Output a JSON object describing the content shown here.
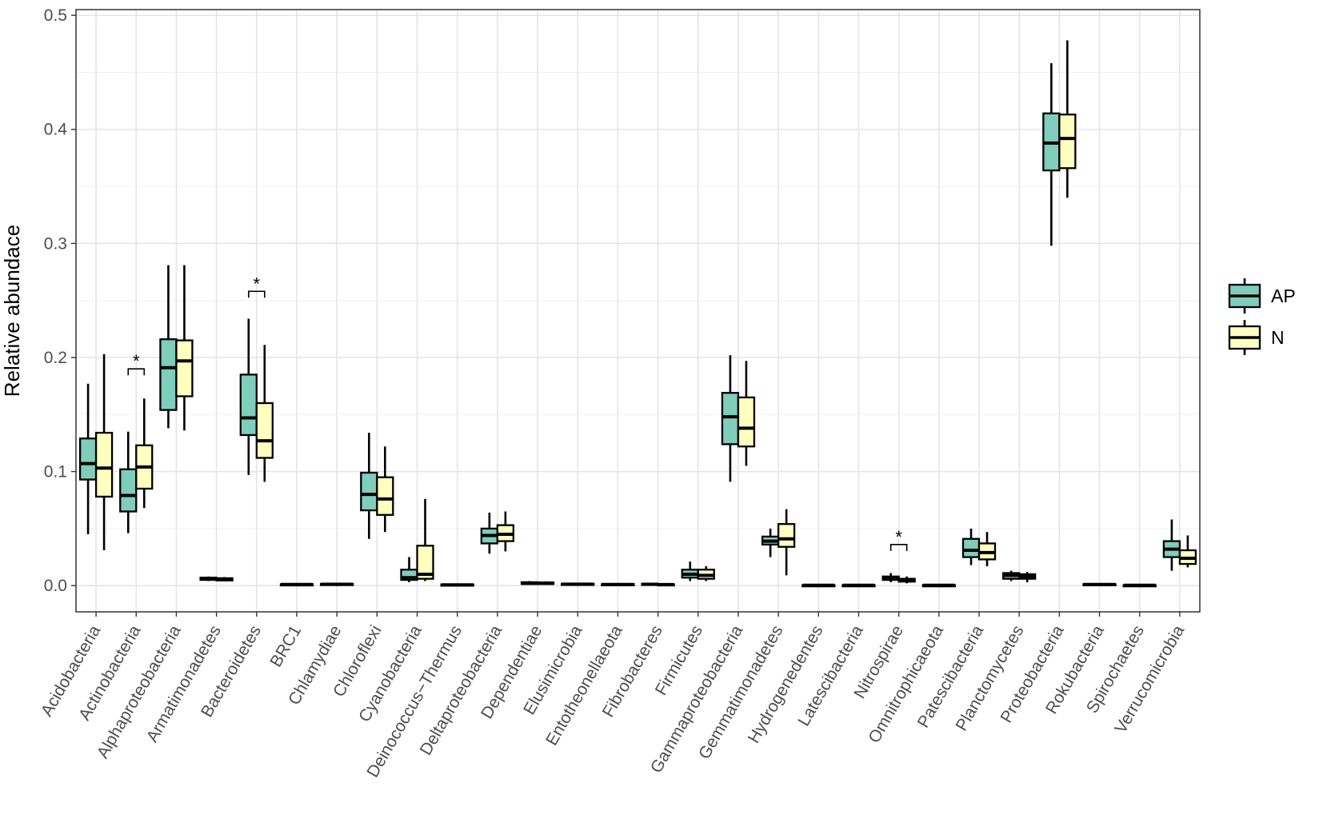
{
  "chart_data": {
    "type": "box",
    "title": "",
    "xlabel": "",
    "ylabel": "Relative abundace",
    "ylim": [
      -0.023,
      0.505
    ],
    "yticks": [
      0.0,
      0.1,
      0.2,
      0.3,
      0.4,
      0.5
    ],
    "ytick_labels": [
      "0.0",
      "0.1",
      "0.2",
      "0.3",
      "0.4",
      "0.5"
    ],
    "grid": true,
    "legend_position": "right",
    "categories": [
      "Acidobacteria",
      "Actinobacteria",
      "Alphaproteobacteria",
      "Armatimonadetes",
      "Bacteroidetes",
      "BRC1",
      "Chlamydiae",
      "Chloroflexi",
      "Cyanobacteria",
      "Deinococcus−Thermus",
      "Deltaproteobacteria",
      "Dependentiae",
      "Elusimicrobia",
      "Entotheonellaeota",
      "Fibrobacteres",
      "Firmicutes",
      "Gammaproteobacteria",
      "Gemmatimonadetes",
      "Hydrogenedentes",
      "Latescibacteria",
      "Nitrospirae",
      "Omnitrophicaeota",
      "Patescibacteria",
      "Planctomycetes",
      "Proteobacteria",
      "Rokubacteria",
      "Spirochaetes",
      "Verrucomicrobia"
    ],
    "series": [
      {
        "name": "AP",
        "color": "#7fcdbb",
        "boxes": [
          {
            "min": 0.045,
            "q1": 0.093,
            "median": 0.107,
            "q3": 0.129,
            "max": 0.177
          },
          {
            "min": 0.046,
            "q1": 0.065,
            "median": 0.079,
            "q3": 0.102,
            "max": 0.135
          },
          {
            "min": 0.138,
            "q1": 0.154,
            "median": 0.191,
            "q3": 0.216,
            "max": 0.281
          },
          {
            "min": 0.004,
            "q1": 0.005,
            "median": 0.006,
            "q3": 0.007,
            "max": 0.008
          },
          {
            "min": 0.097,
            "q1": 0.132,
            "median": 0.147,
            "q3": 0.185,
            "max": 0.234
          },
          {
            "min": 0.0005,
            "q1": 0.0008,
            "median": 0.001,
            "q3": 0.0012,
            "max": 0.0015
          },
          {
            "min": 0.0008,
            "q1": 0.001,
            "median": 0.0012,
            "q3": 0.0015,
            "max": 0.002
          },
          {
            "min": 0.041,
            "q1": 0.066,
            "median": 0.08,
            "q3": 0.099,
            "max": 0.134
          },
          {
            "min": 0.003,
            "q1": 0.005,
            "median": 0.007,
            "q3": 0.014,
            "max": 0.025
          },
          {
            "min": 0.0003,
            "q1": 0.0005,
            "median": 0.0007,
            "q3": 0.001,
            "max": 0.0015
          },
          {
            "min": 0.028,
            "q1": 0.037,
            "median": 0.044,
            "q3": 0.05,
            "max": 0.064
          },
          {
            "min": 0.001,
            "q1": 0.0015,
            "median": 0.002,
            "q3": 0.003,
            "max": 0.004
          },
          {
            "min": 0.0008,
            "q1": 0.001,
            "median": 0.0013,
            "q3": 0.0016,
            "max": 0.002
          },
          {
            "min": 0.0005,
            "q1": 0.0008,
            "median": 0.001,
            "q3": 0.0013,
            "max": 0.0017
          },
          {
            "min": 0.0005,
            "q1": 0.0008,
            "median": 0.0012,
            "q3": 0.0016,
            "max": 0.002
          },
          {
            "min": 0.004,
            "q1": 0.007,
            "median": 0.01,
            "q3": 0.014,
            "max": 0.021
          },
          {
            "min": 0.091,
            "q1": 0.124,
            "median": 0.148,
            "q3": 0.169,
            "max": 0.202
          },
          {
            "min": 0.025,
            "q1": 0.036,
            "median": 0.039,
            "q3": 0.043,
            "max": 0.05
          },
          {
            "min": 0.0001,
            "q1": 0.0002,
            "median": 0.0003,
            "q3": 0.0004,
            "max": 0.0006
          },
          {
            "min": 0.0001,
            "q1": 0.0002,
            "median": 0.0003,
            "q3": 0.0004,
            "max": 0.0006
          },
          {
            "min": 0.003,
            "q1": 0.005,
            "median": 0.006,
            "q3": 0.008,
            "max": 0.011
          },
          {
            "min": 0.0001,
            "q1": 0.0002,
            "median": 0.0003,
            "q3": 0.0004,
            "max": 0.0006
          },
          {
            "min": 0.018,
            "q1": 0.025,
            "median": 0.031,
            "q3": 0.041,
            "max": 0.05
          },
          {
            "min": 0.004,
            "q1": 0.006,
            "median": 0.009,
            "q3": 0.011,
            "max": 0.013
          },
          {
            "min": 0.298,
            "q1": 0.364,
            "median": 0.388,
            "q3": 0.414,
            "max": 0.458
          },
          {
            "min": 0.0005,
            "q1": 0.0008,
            "median": 0.001,
            "q3": 0.0013,
            "max": 0.0017
          },
          {
            "min": 0.0001,
            "q1": 0.0002,
            "median": 0.0003,
            "q3": 0.0004,
            "max": 0.0006
          },
          {
            "min": 0.013,
            "q1": 0.025,
            "median": 0.032,
            "q3": 0.039,
            "max": 0.058
          }
        ]
      },
      {
        "name": "N",
        "color": "#ffffbf",
        "boxes": [
          {
            "min": 0.031,
            "q1": 0.078,
            "median": 0.103,
            "q3": 0.134,
            "max": 0.203
          },
          {
            "min": 0.068,
            "q1": 0.085,
            "median": 0.104,
            "q3": 0.123,
            "max": 0.164
          },
          {
            "min": 0.136,
            "q1": 0.166,
            "median": 0.197,
            "q3": 0.215,
            "max": 0.281
          },
          {
            "min": 0.004,
            "q1": 0.0045,
            "median": 0.0055,
            "q3": 0.0065,
            "max": 0.0075
          },
          {
            "min": 0.091,
            "q1": 0.112,
            "median": 0.127,
            "q3": 0.16,
            "max": 0.211
          },
          {
            "min": 0.0005,
            "q1": 0.0008,
            "median": 0.001,
            "q3": 0.0012,
            "max": 0.0015
          },
          {
            "min": 0.0008,
            "q1": 0.001,
            "median": 0.0012,
            "q3": 0.0015,
            "max": 0.002
          },
          {
            "min": 0.047,
            "q1": 0.062,
            "median": 0.076,
            "q3": 0.095,
            "max": 0.122
          },
          {
            "min": 0.004,
            "q1": 0.006,
            "median": 0.01,
            "q3": 0.035,
            "max": 0.076
          },
          {
            "min": 0.0003,
            "q1": 0.0005,
            "median": 0.0007,
            "q3": 0.001,
            "max": 0.0015
          },
          {
            "min": 0.03,
            "q1": 0.039,
            "median": 0.045,
            "q3": 0.053,
            "max": 0.065
          },
          {
            "min": 0.001,
            "q1": 0.0015,
            "median": 0.002,
            "q3": 0.0028,
            "max": 0.0038
          },
          {
            "min": 0.0008,
            "q1": 0.001,
            "median": 0.0013,
            "q3": 0.0016,
            "max": 0.002
          },
          {
            "min": 0.0005,
            "q1": 0.0008,
            "median": 0.001,
            "q3": 0.0013,
            "max": 0.0017
          },
          {
            "min": 0.0004,
            "q1": 0.0006,
            "median": 0.0009,
            "q3": 0.0012,
            "max": 0.0016
          },
          {
            "min": 0.004,
            "q1": 0.006,
            "median": 0.009,
            "q3": 0.014,
            "max": 0.017
          },
          {
            "min": 0.105,
            "q1": 0.122,
            "median": 0.138,
            "q3": 0.165,
            "max": 0.197
          },
          {
            "min": 0.009,
            "q1": 0.034,
            "median": 0.041,
            "q3": 0.054,
            "max": 0.067
          },
          {
            "min": 0.0001,
            "q1": 0.0002,
            "median": 0.0003,
            "q3": 0.0004,
            "max": 0.0006
          },
          {
            "min": 0.0001,
            "q1": 0.0002,
            "median": 0.0003,
            "q3": 0.0004,
            "max": 0.0006
          },
          {
            "min": 0.002,
            "q1": 0.0035,
            "median": 0.0045,
            "q3": 0.006,
            "max": 0.008
          },
          {
            "min": 0.0001,
            "q1": 0.0002,
            "median": 0.0003,
            "q3": 0.0004,
            "max": 0.0006
          },
          {
            "min": 0.017,
            "q1": 0.023,
            "median": 0.029,
            "q3": 0.037,
            "max": 0.047
          },
          {
            "min": 0.003,
            "q1": 0.006,
            "median": 0.008,
            "q3": 0.01,
            "max": 0.012
          },
          {
            "min": 0.34,
            "q1": 0.366,
            "median": 0.392,
            "q3": 0.413,
            "max": 0.478
          },
          {
            "min": 0.0005,
            "q1": 0.0008,
            "median": 0.001,
            "q3": 0.0013,
            "max": 0.0017
          },
          {
            "min": 0.0001,
            "q1": 0.0002,
            "median": 0.0003,
            "q3": 0.0004,
            "max": 0.0006
          },
          {
            "min": 0.016,
            "q1": 0.019,
            "median": 0.024,
            "q3": 0.031,
            "max": 0.044
          }
        ]
      }
    ],
    "annotations": [
      {
        "category": "Actinobacteria",
        "text": "*",
        "y": 0.19
      },
      {
        "category": "Bacteroidetes",
        "text": "*",
        "y": 0.258
      },
      {
        "category": "Nitrospirae",
        "text": "*",
        "y": 0.036
      }
    ]
  }
}
